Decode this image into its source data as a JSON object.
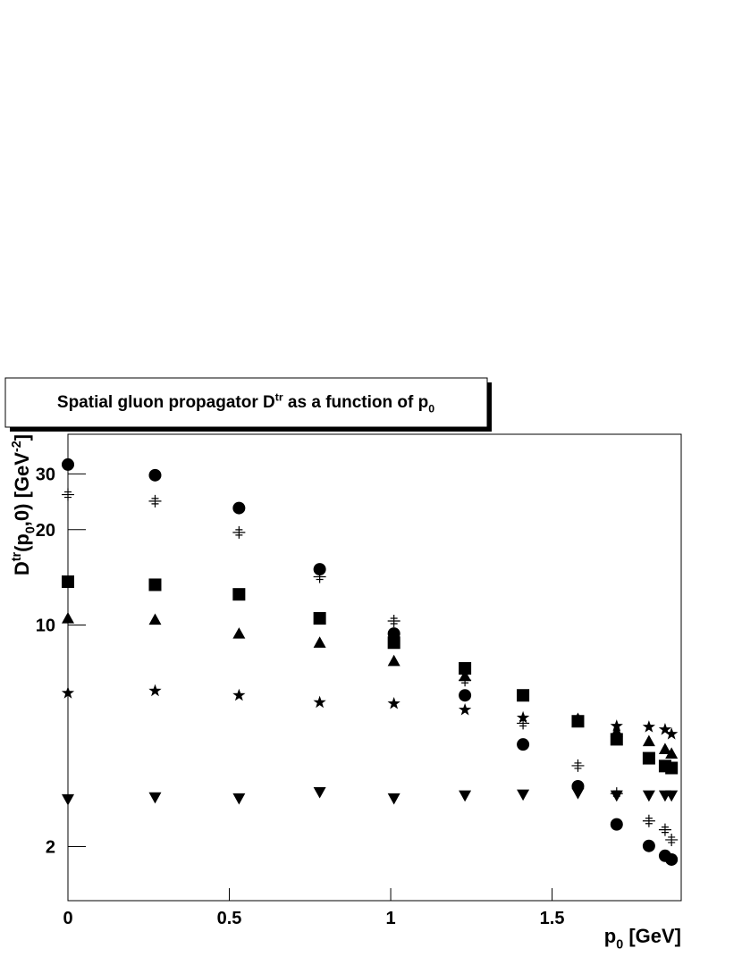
{
  "chart_data": {
    "type": "scatter",
    "title": [
      "Spatial gluon propagator D",
      "tr",
      " as a function of p",
      "0"
    ],
    "x_label": [
      "p",
      "0",
      " [GeV]"
    ],
    "y_label": [
      "D",
      "tr",
      "(p",
      "0",
      ",0) [GeV",
      "-2",
      "]"
    ],
    "x": [
      0,
      0.27,
      0.53,
      0.78,
      1.01,
      1.23,
      1.41,
      1.58,
      1.7,
      1.8,
      1.85,
      1.87
    ],
    "series": [
      {
        "marker": "circle",
        "color": "#000000",
        "values": [
          32.1,
          29.7,
          23.4,
          15.0,
          9.4,
          6.0,
          4.2,
          3.1,
          2.35,
          2.01,
          1.87,
          1.82
        ]
      },
      {
        "marker": "plus",
        "color": "#000000",
        "values": [
          25.8,
          24.6,
          19.6,
          14.2,
          10.3,
          6.7,
          4.9,
          3.6,
          2.94,
          2.41,
          2.26,
          2.1
        ]
      },
      {
        "marker": "square",
        "color": "#000000",
        "values": [
          13.7,
          13.4,
          12.5,
          10.5,
          8.8,
          7.3,
          6.0,
          4.97,
          4.36,
          3.8,
          3.59,
          3.54
        ]
      },
      {
        "marker": "triangle-up",
        "color": "#000000",
        "values": [
          10.5,
          10.4,
          9.4,
          8.8,
          7.7,
          6.9,
          null,
          5.06,
          4.6,
          4.3,
          4.06,
          3.93
        ]
      },
      {
        "marker": "star",
        "color": "#000000",
        "values": [
          6.1,
          6.2,
          6.0,
          5.7,
          5.65,
          5.4,
          5.1,
          5.0,
          4.8,
          4.77,
          4.68,
          4.53
        ]
      },
      {
        "marker": "triangle-down",
        "color": "#000000",
        "values": [
          2.82,
          2.86,
          2.84,
          2.97,
          2.84,
          2.9,
          2.92,
          2.95,
          2.9,
          2.9,
          2.9,
          2.9
        ]
      }
    ],
    "xlim": [
      0,
      1.9
    ],
    "ylim": [
      1.35,
      40
    ],
    "log_y": true,
    "xticks": [
      0,
      0.5,
      1,
      1.5
    ],
    "yticks": [
      2,
      10,
      20,
      30
    ]
  }
}
